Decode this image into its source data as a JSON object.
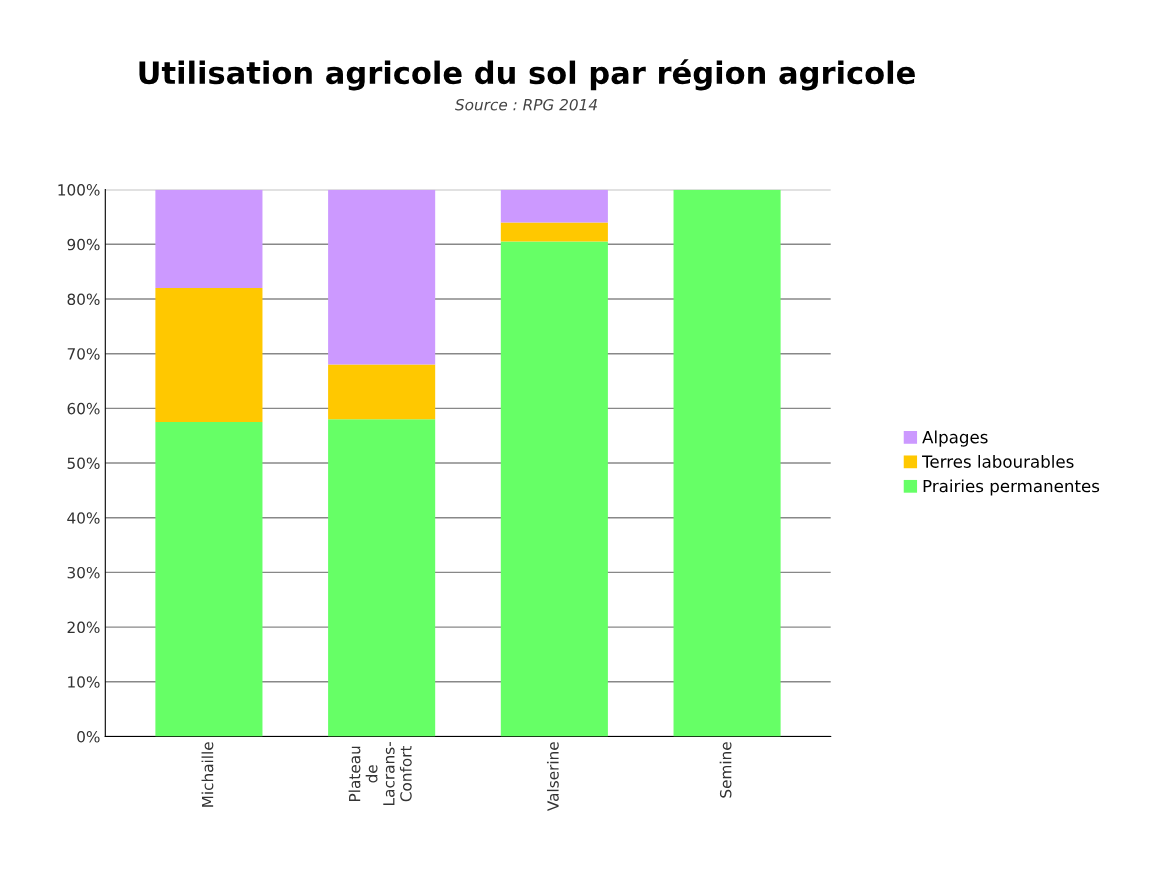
{
  "chart_data": {
    "type": "bar",
    "stacked": true,
    "title": "Utilisation agricole du sol par région agricole",
    "subtitle": "Source : RPG 2014",
    "categories": [
      "Michaille",
      "Plateau\nde\nLacrans-\nConfort",
      "Valserine",
      "Semine"
    ],
    "series": [
      {
        "name": "Prairies permanentes",
        "color": "#66ff66",
        "values": [
          57.5,
          58,
          90.5,
          100
        ]
      },
      {
        "name": "Terres labourables",
        "color": "#ffc800",
        "values": [
          24.5,
          10,
          3.5,
          0
        ]
      },
      {
        "name": "Alpages",
        "color": "#cc99ff",
        "values": [
          18,
          32,
          6,
          0
        ]
      }
    ],
    "ylim": [
      0,
      100
    ],
    "yticks": [
      {
        "value": 0,
        "label": "0%"
      },
      {
        "value": 10,
        "label": "10%"
      },
      {
        "value": 20,
        "label": "20%"
      },
      {
        "value": 30,
        "label": "30%"
      },
      {
        "value": 40,
        "label": "40%"
      },
      {
        "value": 50,
        "label": "50%"
      },
      {
        "value": 60,
        "label": "60%"
      },
      {
        "value": 70,
        "label": "70%"
      },
      {
        "value": 80,
        "label": "80%"
      },
      {
        "value": 90,
        "label": "90%"
      },
      {
        "value": 100,
        "label": "100%"
      }
    ],
    "grid": "y",
    "legend": "right"
  }
}
